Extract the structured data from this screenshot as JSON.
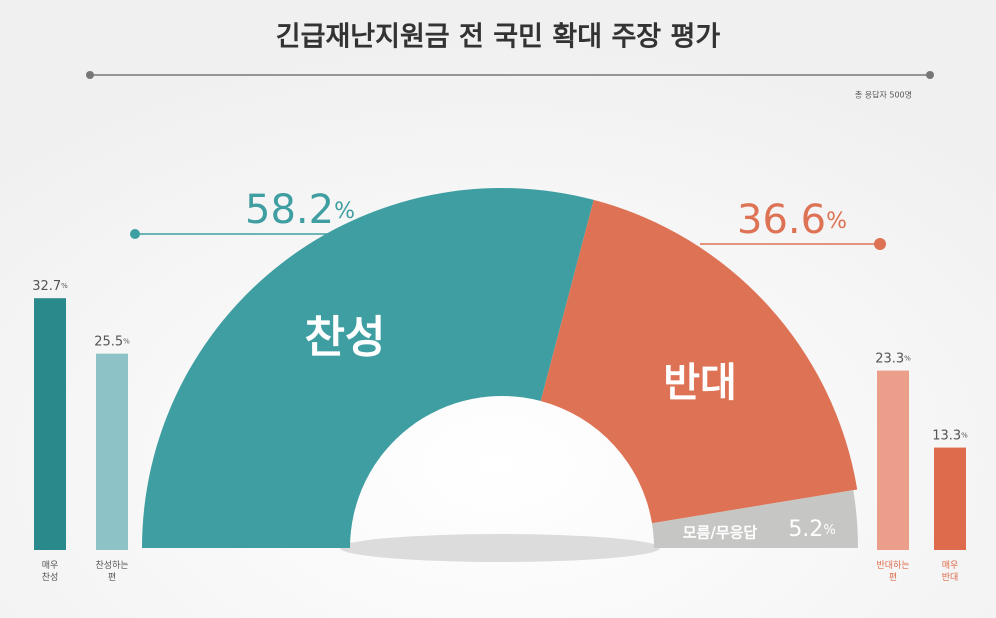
{
  "header": {
    "title": "긴급재난지원금 전 국민 확대 주장 평가",
    "note": "총 응답자 500명"
  },
  "chart_data": [
    {
      "type": "half-donut",
      "categories": [
        "찬성",
        "반대",
        "모름/무응답"
      ],
      "values": [
        58.2,
        36.6,
        5.2
      ],
      "unit": "%",
      "colors": [
        "#3f9ea1",
        "#de7254",
        "#c6c6c4"
      ]
    },
    {
      "type": "bar",
      "categories": [
        "매우 찬성",
        "찬성하는 편"
      ],
      "values": [
        32.7,
        25.5
      ],
      "unit": "%",
      "colors": [
        "#2a898b",
        "#8dc3c6"
      ]
    },
    {
      "type": "bar",
      "categories": [
        "반대하는 편",
        "매우 반대"
      ],
      "values": [
        23.3,
        13.3
      ],
      "unit": "%",
      "colors": [
        "#eb9f8b",
        "#de6b4b"
      ]
    }
  ]
}
